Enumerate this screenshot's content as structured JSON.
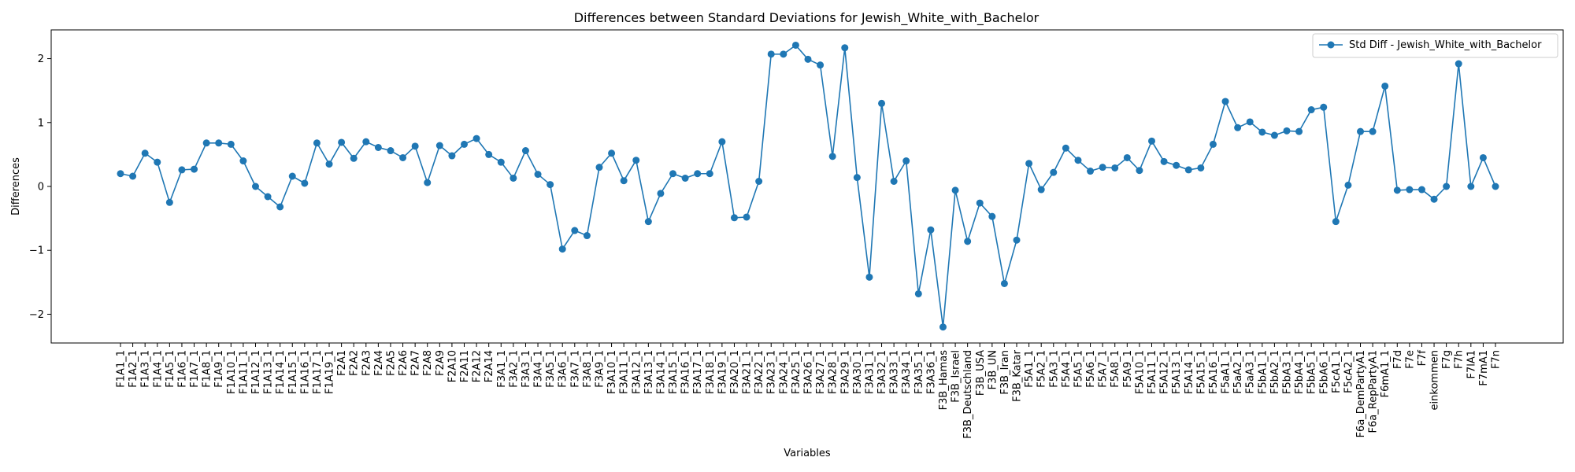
{
  "chart_data": {
    "type": "line",
    "title": "Differences between Standard Deviations for Jewish_White_with_Bachelor",
    "xlabel": "Variables",
    "ylabel": "Differences",
    "ylim": [
      -2.45,
      2.45
    ],
    "yticks": [
      -2,
      -1,
      0,
      1,
      2
    ],
    "grid": false,
    "legend_position": "top-right",
    "series": [
      {
        "name": "Std Diff - Jewish_White_with_Bachelor",
        "color": "#1f77b4",
        "marker": "circle",
        "values": [
          0.2,
          0.16,
          0.52,
          0.38,
          -0.25,
          0.26,
          0.27,
          0.68,
          0.68,
          0.66,
          0.4,
          0.0,
          -0.16,
          -0.32,
          0.16,
          0.05,
          0.68,
          0.35,
          0.69,
          0.44,
          0.7,
          0.61,
          0.56,
          0.45,
          0.63,
          0.06,
          0.64,
          0.48,
          0.66,
          0.75,
          0.5,
          0.38,
          0.13,
          0.56,
          0.19,
          0.03,
          -0.98,
          -0.69,
          -0.77,
          0.3,
          0.52,
          0.09,
          0.41,
          -0.55,
          -0.11,
          0.2,
          0.13,
          0.2,
          0.2,
          0.7,
          -0.49,
          -0.48,
          0.08,
          2.07,
          2.07,
          2.21,
          1.99,
          1.9,
          0.47,
          2.17,
          0.14,
          -1.42,
          1.3,
          0.08,
          0.4,
          -1.68,
          -0.68,
          -2.2,
          -0.06,
          -0.86,
          -0.26,
          -0.47,
          -1.52,
          -0.84,
          0.36,
          -0.05,
          0.22,
          0.6,
          0.41,
          0.24,
          0.3,
          0.29,
          0.45,
          0.25,
          0.71,
          0.39,
          0.33,
          0.26,
          0.29,
          0.66,
          1.33,
          0.92,
          1.01,
          0.85,
          0.8,
          0.87,
          0.86,
          1.2,
          1.24,
          -0.55,
          0.02,
          0.86,
          0.86,
          1.57,
          -0.06,
          -0.05,
          -0.05,
          -0.2,
          0.0,
          1.92,
          0.0,
          0.45,
          0.0
        ]
      }
    ],
    "categories": [
      "F1A1_1",
      "F1A2_1",
      "F1A3_1",
      "F1A4_1",
      "F1A5_1",
      "F1A6_1",
      "F1A7_1",
      "F1A8_1",
      "F1A9_1",
      "F1A10_1",
      "F1A11_1",
      "F1A12_1",
      "F1A13_1",
      "F1A14_1",
      "F1A15_1",
      "F1A16_1",
      "F1A17_1",
      "F1A19_1",
      "F2A1",
      "F2A2",
      "F2A3",
      "F2A4",
      "F2A5",
      "F2A6",
      "F2A7",
      "F2A8",
      "F2A9",
      "F2A10",
      "F2A11",
      "F2A12",
      "F2A14",
      "F3A1_1",
      "F3A2_1",
      "F3A3_1",
      "F3A4_1",
      "F3A5_1",
      "F3A6_1",
      "F3A7_1",
      "F3A8_1",
      "F3A9_1",
      "F3A10_1",
      "F3A11_1",
      "F3A12_1",
      "F3A13_1",
      "F3A14_1",
      "F3A15_1",
      "F3A16_1",
      "F3A17_1",
      "F3A18_1",
      "F3A19_1",
      "F3A20_1",
      "F3A21_1",
      "F3A22_1",
      "F3A23_1",
      "F3A24_1",
      "F3A25_1",
      "F3A26_1",
      "F3A27_1",
      "F3A28_1",
      "F3A29_1",
      "F3A30_1",
      "F3A31_1",
      "F3A32_1",
      "F3A33_1",
      "F3A34_1",
      "F3A35_1",
      "F3A36_1",
      "F3B_Hamas",
      "F3B_Israel",
      "F3B_Deutschland",
      "F3B_USA",
      "F3B_UN",
      "F3B_Iran",
      "F3B_Katar",
      "F5A1_1",
      "F5A2_1",
      "F5A3_1",
      "F5A4_1",
      "F5A5_1",
      "F5A6_1",
      "F5A7_1",
      "F5A8_1",
      "F5A9_1",
      "F5A10_1",
      "F5A11_1",
      "F5A12_1",
      "F5A13_1",
      "F5A14_1",
      "F5A15_1",
      "F5A16_1",
      "F5aA1_1",
      "F5aA2_1",
      "F5aA3_1",
      "F5bA1_1",
      "F5bA2_1",
      "F5bA3_1",
      "F5bA4_1",
      "F5bA5_1",
      "F5bA6_1",
      "F5cA1_1",
      "F5cA2_1",
      "F6a_DemPartyA1",
      "F6a_RepPartyA1",
      "F6mA1_1",
      "F7d",
      "F7e",
      "F7f",
      "einkommen",
      "F7g",
      "F7h",
      "F7lA1",
      "F7mA1",
      "F7n"
    ]
  }
}
